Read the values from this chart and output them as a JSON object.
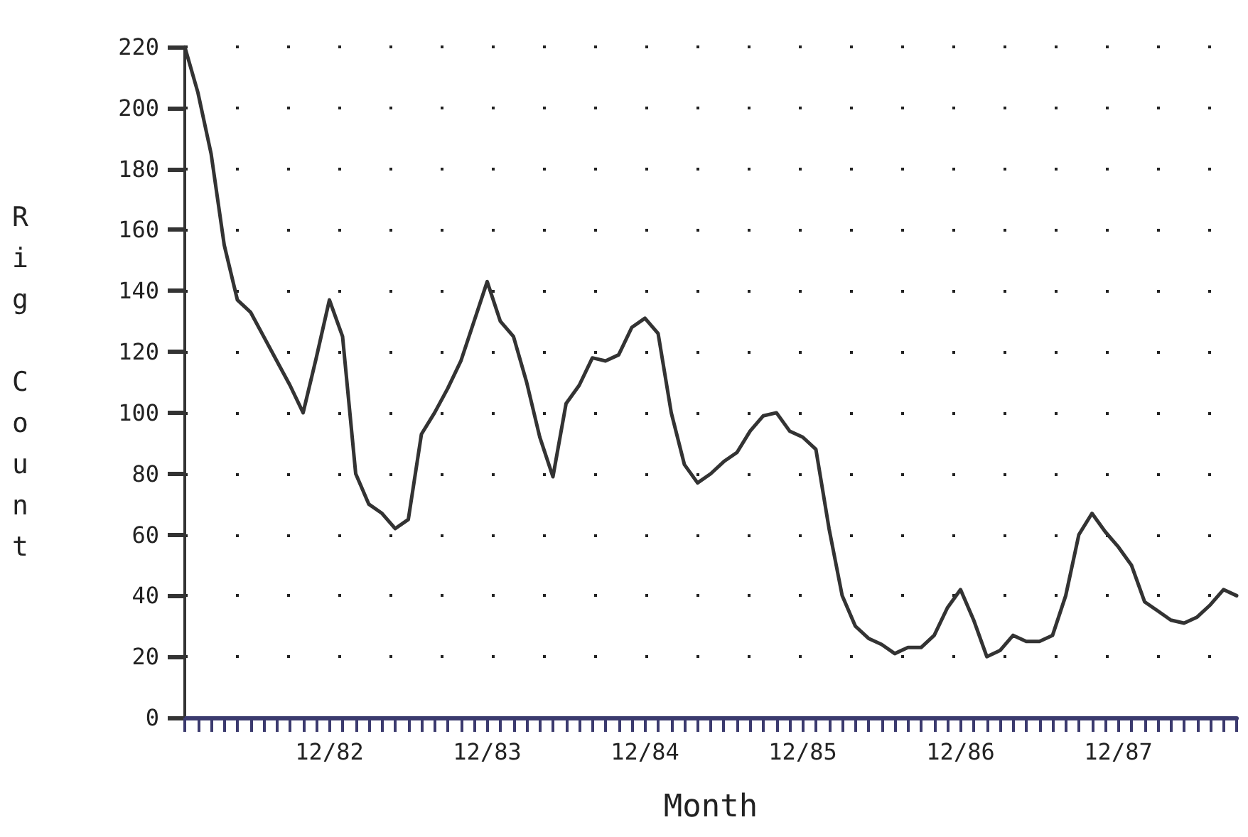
{
  "chart_data": {
    "type": "line",
    "xlabel": "Month",
    "ylabel": "Rig Count",
    "categories": [
      null,
      null,
      null,
      null,
      null,
      null,
      null,
      null,
      null,
      null,
      null,
      "12/82",
      null,
      null,
      null,
      null,
      null,
      null,
      null,
      null,
      null,
      null,
      null,
      "12/83",
      null,
      null,
      null,
      null,
      null,
      null,
      null,
      null,
      null,
      null,
      null,
      "12/84",
      null,
      null,
      null,
      null,
      null,
      null,
      null,
      null,
      null,
      null,
      null,
      "12/85",
      null,
      null,
      null,
      null,
      null,
      null,
      null,
      null,
      null,
      null,
      null,
      "12/86",
      null,
      null,
      null,
      null,
      null,
      null,
      null,
      null,
      null,
      null,
      null,
      "12/87",
      null,
      null,
      null,
      null,
      null,
      null,
      null,
      null,
      null
    ],
    "series": [
      {
        "color": "#333333",
        "values": [
          220,
          205,
          185,
          155,
          137,
          133,
          125,
          117,
          109,
          100,
          118,
          137,
          125,
          80,
          70,
          67,
          62,
          65,
          93,
          100,
          108,
          117,
          130,
          143,
          130,
          125,
          110,
          92,
          79,
          103,
          109,
          118,
          117,
          119,
          128,
          131,
          126,
          100,
          83,
          77,
          80,
          84,
          87,
          94,
          99,
          100,
          94,
          92,
          88,
          62,
          40,
          30,
          26,
          24,
          21,
          23,
          23,
          27,
          36,
          42,
          32,
          20,
          22,
          27,
          25,
          25,
          27,
          40,
          60,
          67,
          61,
          56,
          50,
          38,
          35,
          32,
          31,
          33,
          37,
          42,
          40
        ]
      }
    ],
    "ylim": [
      0,
      220
    ],
    "yticks": [
      0,
      20,
      40,
      60,
      80,
      100,
      120,
      140,
      160,
      180,
      200,
      220
    ],
    "grid": "y",
    "marker": "none",
    "line_style": "solid"
  }
}
